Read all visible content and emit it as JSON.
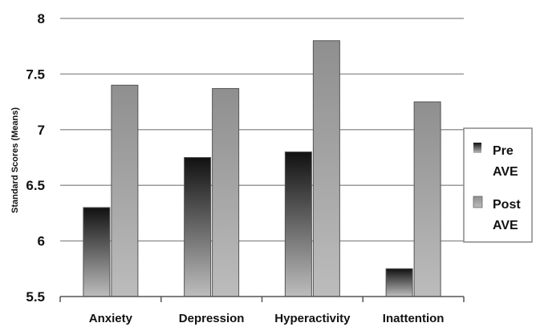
{
  "chart_data": {
    "type": "bar",
    "title": "",
    "xlabel": "",
    "ylabel": "Standard Scores (Means)",
    "ylim": [
      5.5,
      8
    ],
    "yticks": [
      "5.5",
      "6",
      "6.5",
      "7",
      "7.5",
      "8"
    ],
    "categories": [
      "Anxiety",
      "Depression",
      "Hyperactivity",
      "Inattention"
    ],
    "series": [
      {
        "name": "Pre AVE",
        "values": [
          6.3,
          6.75,
          6.8,
          5.75
        ]
      },
      {
        "name": "Post AVE",
        "values": [
          7.4,
          7.37,
          7.8,
          7.25
        ]
      }
    ],
    "grid": true,
    "legend": "right",
    "legend_lines": [
      [
        "Pre",
        "AVE"
      ],
      [
        "Post",
        "AVE"
      ]
    ]
  }
}
